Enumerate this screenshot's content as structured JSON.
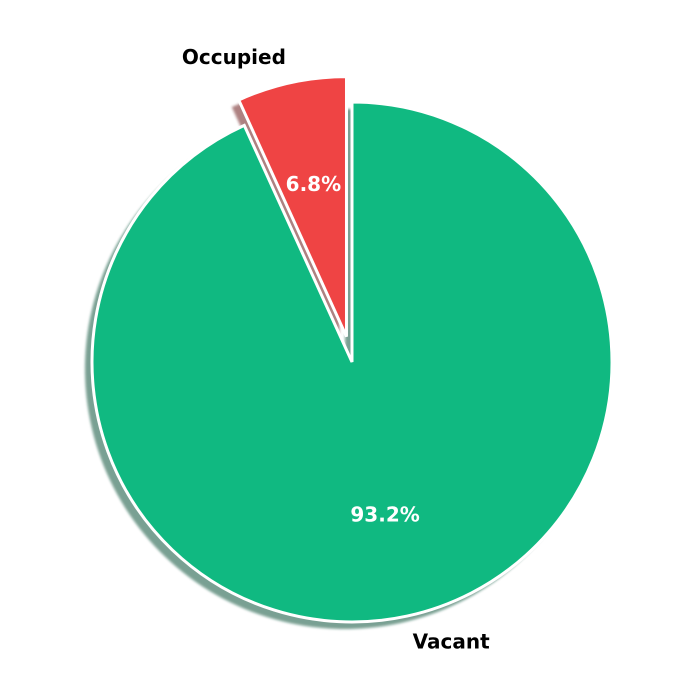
{
  "chart_data": {
    "type": "pie",
    "title": "",
    "slices": [
      {
        "label": "Occupied",
        "value": 6.8,
        "pct_label": "6.8%",
        "color": "#ef4444",
        "exploded": true
      },
      {
        "label": "Vacant",
        "value": 93.2,
        "pct_label": "93.2%",
        "color": "#10b981",
        "exploded": false
      }
    ],
    "start": "top",
    "direction": "counterclockwise",
    "shadow": true,
    "legend": "none"
  }
}
